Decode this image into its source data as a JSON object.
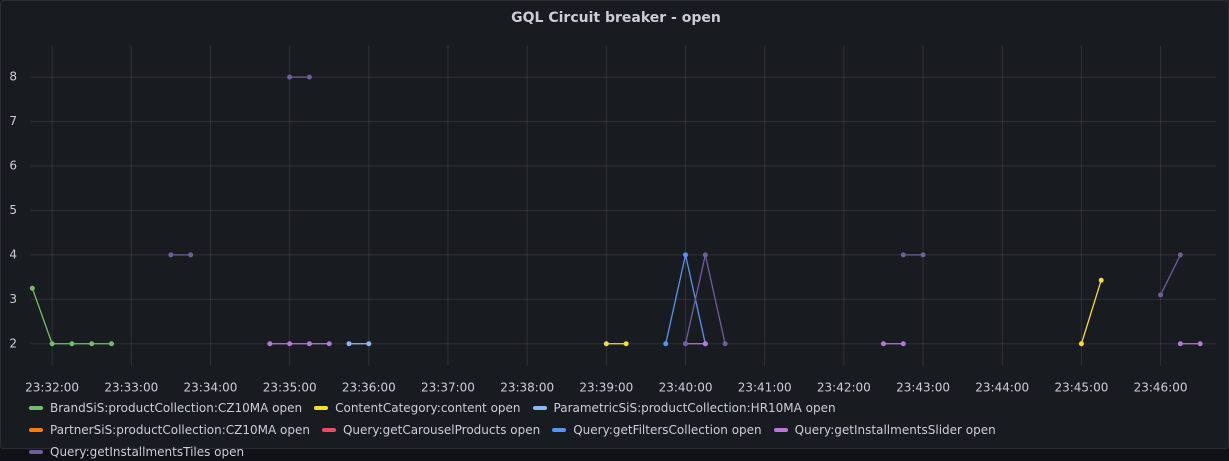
{
  "chart_data": {
    "type": "line",
    "title": "GQL Circuit breaker - open",
    "xlim": [
      "23:31:44",
      "23:46:42"
    ],
    "xticks": [
      "23:32:00",
      "23:33:00",
      "23:34:00",
      "23:35:00",
      "23:36:00",
      "23:37:00",
      "23:38:00",
      "23:39:00",
      "23:40:00",
      "23:41:00",
      "23:42:00",
      "23:43:00",
      "23:44:00",
      "23:45:00",
      "23:46:00"
    ],
    "ylim": [
      1.5,
      8.7
    ],
    "yticks": [
      2,
      3,
      4,
      5,
      6,
      7,
      8
    ],
    "grid": true,
    "series": [
      {
        "name": "BrandSiS:productCollection:CZ10MA open",
        "color": "#73bf69",
        "x": [
          "23:31:45",
          "23:32:00",
          "23:32:15",
          "23:32:30",
          "23:32:45"
        ],
        "values": [
          3.25,
          2,
          2,
          2,
          2
        ]
      },
      {
        "name": "ContentCategory:content open",
        "color": "#fade2a",
        "x": [
          "23:39:00",
          "23:39:15",
          null,
          "23:45:00",
          "23:45:15"
        ],
        "values": [
          2,
          2,
          null,
          2,
          3.43
        ]
      },
      {
        "name": "ParametricSiS:productCollection:HR10MA open",
        "color": "#8ab8ff",
        "x": [
          "23:35:45",
          "23:36:00"
        ],
        "values": [
          2,
          2
        ]
      },
      {
        "name": "PartnerSiS:productCollection:CZ10MA open",
        "color": "#ff780a",
        "x": [],
        "values": []
      },
      {
        "name": "Query:getCarouselProducts open",
        "color": "#f2495c",
        "x": [],
        "values": []
      },
      {
        "name": "Query:getFiltersCollection open",
        "color": "#5794f2",
        "x": [
          "23:39:45",
          "23:40:00",
          "23:40:15"
        ],
        "values": [
          2,
          4,
          2
        ]
      },
      {
        "name": "Query:getInstallmentsSlider open",
        "color": "#b877d9",
        "x": [
          "23:34:45",
          "23:35:00",
          "23:35:15",
          "23:35:30",
          null,
          "23:40:00",
          "23:40:15",
          null,
          "23:42:30",
          "23:42:45",
          null,
          "23:46:15",
          "23:46:30"
        ],
        "values": [
          2,
          2,
          2,
          2,
          null,
          2,
          2,
          null,
          2,
          2,
          null,
          2,
          2
        ]
      },
      {
        "name": "Query:getInstallmentsTiles open",
        "color": "#705da0",
        "x": [
          "23:33:30",
          "23:33:45",
          null,
          "23:35:00",
          "23:35:15",
          null,
          "23:40:00",
          "23:40:15",
          "23:40:30",
          null,
          "23:42:45",
          "23:43:00",
          null,
          "23:46:00",
          "23:46:15"
        ],
        "values": [
          4,
          4,
          null,
          8,
          8,
          null,
          2,
          4,
          2,
          null,
          4,
          4,
          null,
          3.1,
          4
        ]
      }
    ]
  }
}
